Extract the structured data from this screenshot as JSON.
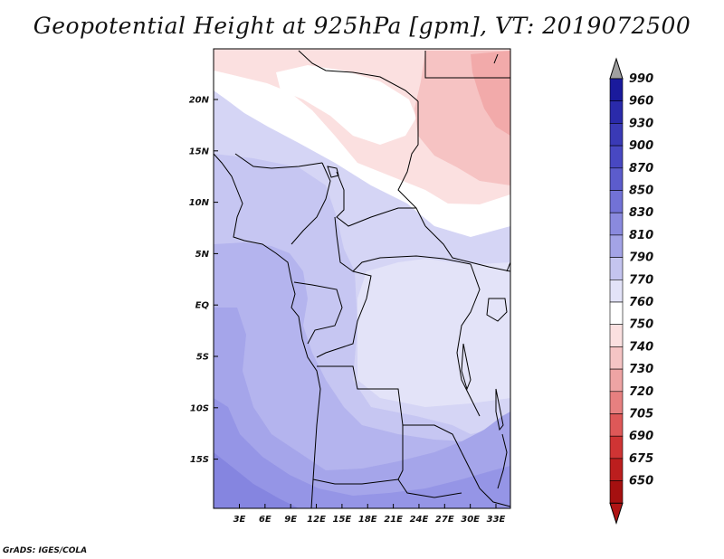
{
  "title": "Geopotential Height at 925hPa [gpm], VT: 2019072500",
  "credit": "GrADS: IGES/COLA",
  "map": {
    "lat_labels": [
      "20N",
      "15N",
      "10N",
      "5N",
      "EQ",
      "5S",
      "10S",
      "15S"
    ],
    "lon_labels": [
      "3E",
      "6E",
      "9E",
      "12E",
      "15E",
      "18E",
      "21E",
      "24E",
      "27E",
      "30E",
      "33E"
    ],
    "colors": {
      "red_light": "#fbe0e0",
      "red_mid": "#f6c3c3",
      "red_strong": "#f2aaaa",
      "white": "#ffffff",
      "lav_pale": "#e3e3f8",
      "lav_light": "#d5d5f5",
      "lav_mid": "#c6c6f2",
      "lav_med": "#b4b4ee",
      "lav_deep": "#a5a5ea",
      "lav_deeper": "#9595e6",
      "lav_deepest": "#8585e0"
    }
  },
  "colorbar": {
    "labels": [
      "990",
      "960",
      "930",
      "900",
      "870",
      "850",
      "830",
      "810",
      "790",
      "770",
      "760",
      "750",
      "740",
      "730",
      "720",
      "705",
      "690",
      "675",
      "650"
    ],
    "colors": [
      "#1a1a9c",
      "#2a2aaa",
      "#3a3ab6",
      "#4848c2",
      "#5c5ccc",
      "#7272d6",
      "#8a8ade",
      "#a3a3e6",
      "#c4c4ef",
      "#e3e3f8",
      "#ffffff",
      "#fbe0e0",
      "#f5c4c4",
      "#eea4a4",
      "#e78080",
      "#de5858",
      "#cf3434",
      "#bc1e1e",
      "#a51010"
    ],
    "top_arrow_color": "#a0a0a0",
    "bottom_arrow_color": "#b01414"
  }
}
